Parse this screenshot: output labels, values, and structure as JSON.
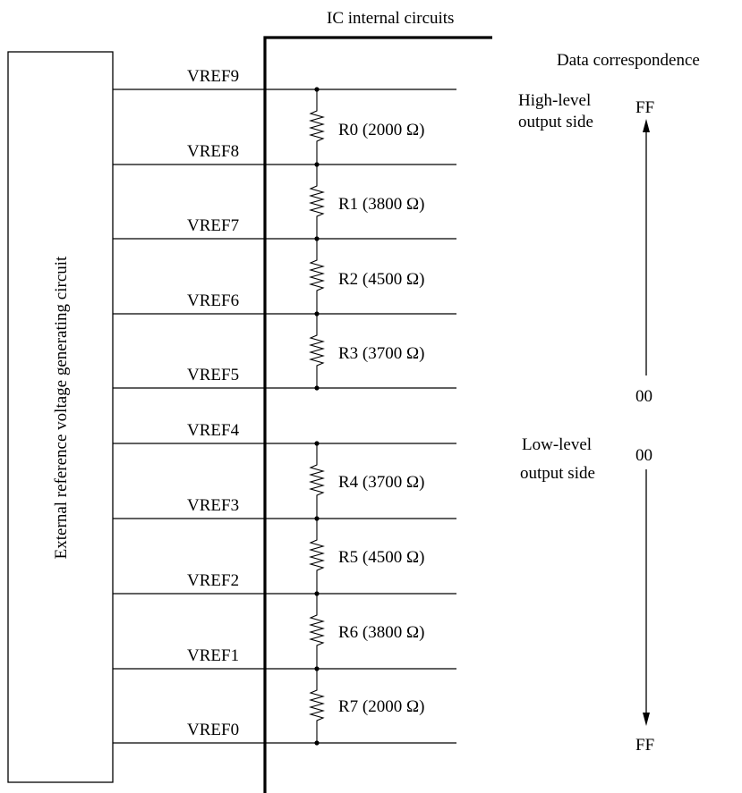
{
  "ic_label": "IC internal circuits",
  "external_label": "External reference voltage generating circuit",
  "data_correspondence": "Data correspondence",
  "high_side": {
    "line1": "High-level",
    "line2": "output side",
    "top_value": "FF",
    "bottom_value": "00"
  },
  "low_side": {
    "line1": "Low-level",
    "line2": "output side",
    "top_value": "00",
    "bottom_value": "FF"
  },
  "vrefs": [
    "VREF9",
    "VREF8",
    "VREF7",
    "VREF6",
    "VREF5",
    "VREF4",
    "VREF3",
    "VREF2",
    "VREF1",
    "VREF0"
  ],
  "resistors": [
    "R0 (2000 Ω)",
    "R1 (3800 Ω)",
    "R2 (4500 Ω)",
    "R3 (3700 Ω)",
    "R4 (3700 Ω)",
    "R5 (4500 Ω)",
    "R6 (3800 Ω)",
    "R7 (2000 Ω)"
  ]
}
